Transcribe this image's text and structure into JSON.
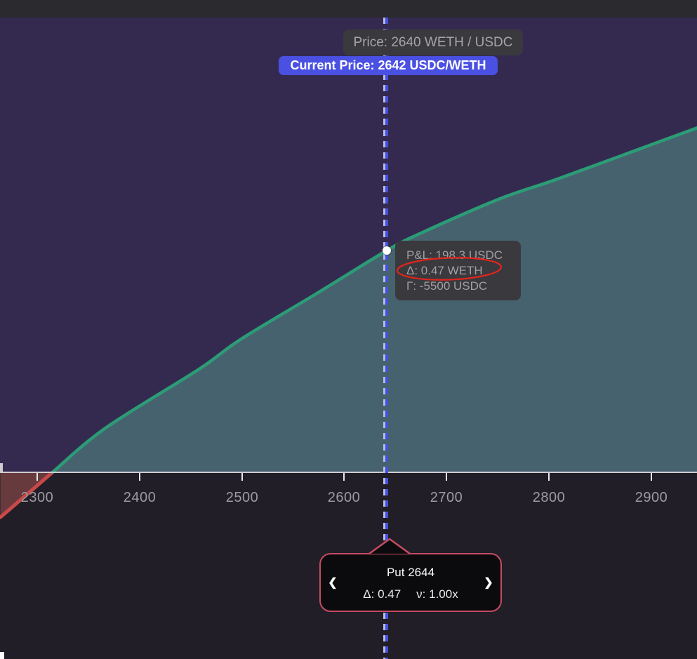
{
  "tooltips": {
    "hover_price": {
      "label": "Price: 2640 WETH / USDC"
    },
    "current_price": {
      "label": "Current Price: 2642 USDC/WETH"
    },
    "pnl": {
      "line1": "P&L: 198.3 USDC",
      "line2": "Δ: 0.47 WETH",
      "line3": "Γ: -5500 USDC"
    }
  },
  "position_card": {
    "title": "Put 2644",
    "delta": "Δ: 0.47",
    "vega": "ν: 1.00x",
    "prev_icon": "❮",
    "next_icon": "❯"
  },
  "annotations": {
    "highlight": "red hand-drawn ellipse around delta readout",
    "highlight_color": "#e1251c"
  },
  "colors": {
    "plot_background": "#342a50",
    "area_positive_fill": "#46626f",
    "area_negative_fill": "#673a3e",
    "line_positive": "#2c9c76",
    "line_negative": "#c94949",
    "current_price_pill": "#4a50e2",
    "tooltip_background": "#3a393d",
    "strike_card_border": "#c64b63",
    "dashed_line_blue": "#4450e0",
    "dashed_line_light": "#b9bcd9",
    "axis_line": "#cfccd0"
  },
  "chart_data": {
    "type": "area",
    "title": "Option P&L vs price",
    "xlabel": "",
    "ylabel": "",
    "x_ticks": [
      2300,
      2400,
      2500,
      2600,
      2700,
      2800,
      2900
    ],
    "x_range": [
      2264,
      2945
    ],
    "y_axis_visible": false,
    "grid": false,
    "legend": false,
    "current_price": 2642,
    "breakeven_price": 2315,
    "hover": {
      "price": 2640,
      "pnl_usdc": 198.3,
      "delta_weth": 0.47,
      "gamma_usdc": -5500
    },
    "strike": {
      "type": "Put",
      "strike_price": 2644,
      "delta": 0.47,
      "vega_mult": "1.00x"
    },
    "series": [
      {
        "name": "P&L (USDC)",
        "points": [
          [
            2264.0,
            -40.2
          ],
          [
            2315.0,
            0
          ],
          [
            2366.5,
            39.5
          ],
          [
            2457.7,
            92.0
          ],
          [
            2498.9,
            119.0
          ],
          [
            2571.0,
            158.8
          ],
          [
            2641.5,
            198.3
          ],
          [
            2675.1,
            214.0
          ],
          [
            2752.6,
            244.8
          ],
          [
            2812.2,
            263.6
          ],
          [
            2944.6,
            308.0
          ]
        ]
      }
    ]
  }
}
